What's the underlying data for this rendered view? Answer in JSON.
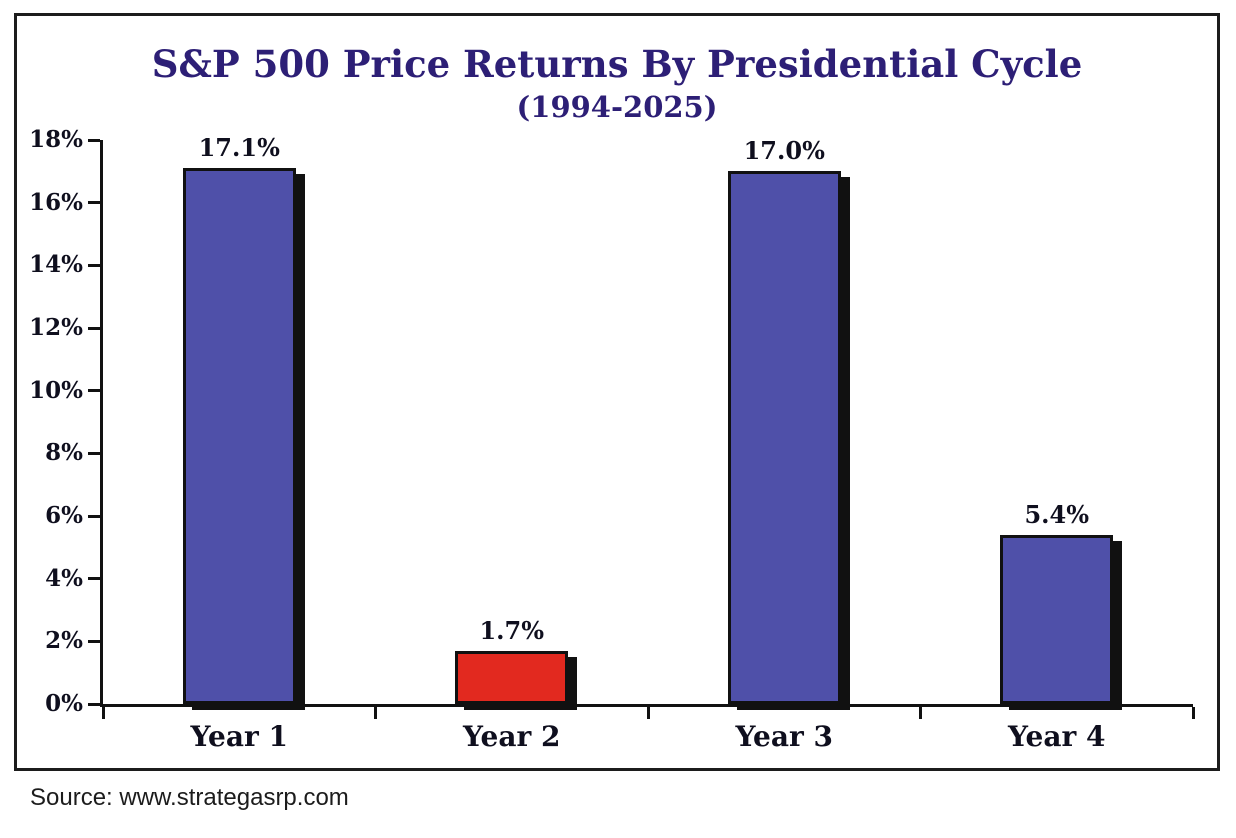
{
  "chart_data": {
    "type": "bar",
    "title": "S&P 500 Price Returns By Presidential Cycle",
    "subtitle": "(1994-2025)",
    "categories": [
      "Year 1",
      "Year 2",
      "Year 3",
      "Year 4"
    ],
    "values": [
      17.1,
      1.7,
      17.0,
      5.4
    ],
    "value_labels": [
      "17.1%",
      "1.7%",
      "17.0%",
      "5.4%"
    ],
    "bar_colors": [
      "#4F50A9",
      "#E2291F",
      "#4F50A9",
      "#4F50A9"
    ],
    "ylim": [
      0,
      18
    ],
    "ytick_step": 2,
    "ytick_labels": [
      "0%",
      "2%",
      "4%",
      "6%",
      "8%",
      "10%",
      "12%",
      "14%",
      "16%",
      "18%"
    ],
    "grid": false,
    "legend_position": "none",
    "source": "Source: www.strategasrp.com",
    "colors": {
      "title_text": "#2D1F76",
      "axis_line": "#111111",
      "bar_border": "#111111",
      "tick_label_text": "#0F0F1E",
      "value_label_text": "#0F0F1E"
    }
  }
}
